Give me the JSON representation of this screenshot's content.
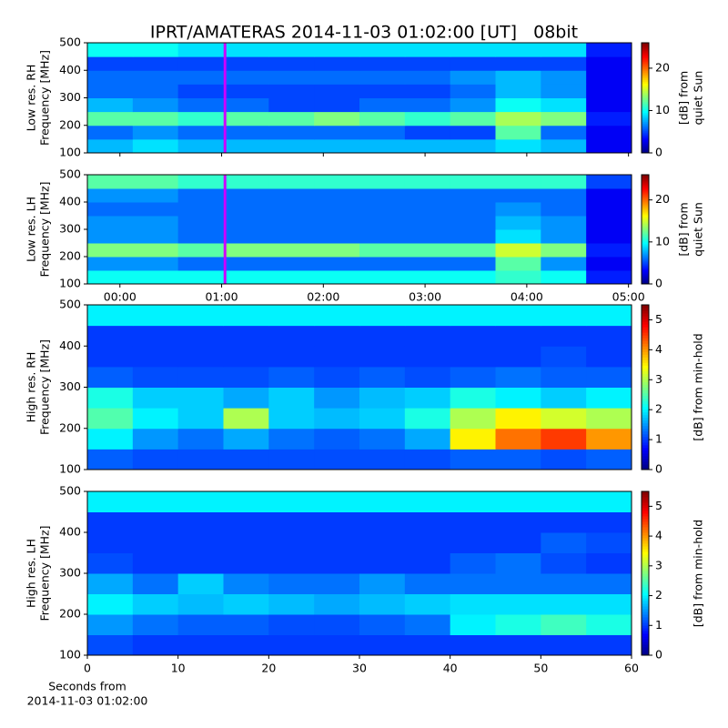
{
  "title": "IPRT/AMATERAS 2014-11-03 01:02:00 [UT]   08bit",
  "chart_data": [
    {
      "type": "heatmap",
      "ylabel": [
        "Low res. RH",
        "Frequency [MHz]"
      ],
      "xlim": [
        -0.32,
        5.03
      ],
      "ylim": [
        100,
        500
      ],
      "yticks": [
        100,
        200,
        300,
        400,
        500
      ],
      "xticks": [
        {
          "value": 0,
          "label": "00:00"
        },
        {
          "value": 1,
          "label": "01:00"
        },
        {
          "value": 2,
          "label": "02:00"
        },
        {
          "value": 3,
          "label": "03:00"
        },
        {
          "value": 4,
          "label": "04:00"
        },
        {
          "value": 5,
          "label": "05:00"
        }
      ],
      "show_xticklabels": false,
      "cursor_x": 1.033,
      "cursor_color": "#cc00ff",
      "clim": [
        0,
        26
      ],
      "cticks": [
        0,
        10,
        20
      ],
      "clabel": [
        "[dB] from",
        "quiet Sun"
      ],
      "z": [
        [
          8,
          9,
          8,
          8,
          8,
          8,
          8,
          8,
          8,
          9,
          8,
          3
        ],
        [
          6,
          7,
          6,
          6,
          6,
          6,
          6,
          5,
          5,
          12,
          6,
          3
        ],
        [
          12,
          12,
          11,
          12,
          12,
          13,
          12,
          11,
          12,
          14,
          13,
          4
        ],
        [
          8,
          7,
          6,
          6,
          5,
          5,
          6,
          6,
          7,
          10,
          9,
          3
        ],
        [
          6,
          6,
          5,
          5,
          5,
          5,
          5,
          5,
          6,
          8,
          7,
          3
        ],
        [
          6,
          6,
          6,
          6,
          6,
          6,
          6,
          6,
          7,
          8,
          7,
          3
        ],
        [
          5,
          5,
          5,
          5,
          5,
          5,
          5,
          5,
          5,
          5,
          5,
          3
        ],
        [
          10,
          10,
          9,
          9,
          9,
          9,
          9,
          9,
          9,
          9,
          9,
          4
        ]
      ]
    },
    {
      "type": "heatmap",
      "ylabel": [
        "Low res. LH",
        "Frequency [MHz]"
      ],
      "xlim": [
        -0.32,
        5.03
      ],
      "ylim": [
        100,
        500
      ],
      "yticks": [
        100,
        200,
        300,
        400,
        500
      ],
      "xticks": [
        {
          "value": 0,
          "label": "00:00"
        },
        {
          "value": 1,
          "label": "01:00"
        },
        {
          "value": 2,
          "label": "02:00"
        },
        {
          "value": 3,
          "label": "03:00"
        },
        {
          "value": 4,
          "label": "04:00"
        },
        {
          "value": 5,
          "label": "05:00"
        }
      ],
      "show_xticklabels": true,
      "cursor_x": 1.033,
      "cursor_color": "#cc00ff",
      "clim": [
        0,
        26
      ],
      "cticks": [
        0,
        10,
        20
      ],
      "clabel": [
        "[dB] from",
        "quiet Sun"
      ],
      "z": [
        [
          10,
          10,
          10,
          10,
          10,
          10,
          10,
          10,
          10,
          11,
          10,
          4
        ],
        [
          7,
          7,
          6,
          6,
          6,
          6,
          6,
          6,
          6,
          12,
          7,
          3
        ],
        [
          13,
          13,
          12,
          13,
          13,
          13,
          12,
          12,
          12,
          15,
          13,
          4
        ],
        [
          7,
          7,
          6,
          6,
          6,
          6,
          6,
          6,
          6,
          9,
          7,
          3
        ],
        [
          7,
          7,
          6,
          6,
          6,
          6,
          6,
          6,
          6,
          8,
          7,
          3
        ],
        [
          6,
          6,
          6,
          6,
          6,
          6,
          6,
          6,
          6,
          7,
          6,
          3
        ],
        [
          7,
          7,
          6,
          6,
          6,
          6,
          6,
          6,
          6,
          6,
          6,
          3
        ],
        [
          12,
          12,
          11,
          11,
          11,
          11,
          11,
          11,
          11,
          11,
          11,
          5
        ]
      ]
    },
    {
      "type": "heatmap",
      "ylabel": [
        "High res. RH",
        "Frequency [MHz]"
      ],
      "xlim": [
        0,
        60
      ],
      "ylim": [
        100,
        500
      ],
      "yticks": [
        100,
        200,
        300,
        400,
        500
      ],
      "clim": [
        0,
        5.5
      ],
      "cticks": [
        0,
        1,
        2,
        3,
        4,
        5
      ],
      "clabel": [
        "[dB] from min-hold"
      ],
      "z": [
        [
          1.2,
          1.1,
          1.1,
          1.1,
          1.1,
          1.1,
          1.1,
          1.1,
          1.2,
          1.2,
          1.1,
          1.2
        ],
        [
          2.0,
          1.5,
          1.3,
          1.6,
          1.3,
          1.2,
          1.3,
          1.6,
          3.5,
          4.2,
          4.5,
          4.0
        ],
        [
          2.5,
          2.0,
          1.8,
          3.0,
          1.8,
          1.7,
          1.8,
          2.2,
          3.0,
          3.5,
          3.2,
          3.0
        ],
        [
          2.2,
          1.8,
          1.8,
          1.6,
          1.8,
          1.5,
          1.7,
          1.8,
          2.2,
          2.0,
          1.8,
          2.0
        ],
        [
          1.2,
          1.1,
          1.1,
          1.1,
          1.2,
          1.1,
          1.2,
          1.1,
          1.2,
          1.3,
          1.2,
          1.2
        ],
        [
          1.0,
          1.0,
          1.0,
          1.0,
          1.0,
          1.0,
          1.0,
          1.0,
          1.0,
          1.0,
          1.1,
          1.0
        ],
        [
          1.0,
          1.0,
          1.0,
          1.0,
          1.0,
          1.0,
          1.0,
          1.0,
          1.0,
          1.0,
          1.0,
          1.0
        ],
        [
          2.0,
          2.0,
          2.0,
          2.0,
          2.0,
          2.0,
          2.0,
          2.0,
          2.0,
          2.0,
          2.0,
          2.0
        ]
      ]
    },
    {
      "type": "heatmap",
      "ylabel": [
        "High res. LH",
        "Frequency [MHz]"
      ],
      "xlim": [
        0,
        60
      ],
      "ylim": [
        100,
        500
      ],
      "yticks": [
        100,
        200,
        300,
        400,
        500
      ],
      "xticks": [
        0,
        10,
        20,
        30,
        40,
        50,
        60
      ],
      "show_xticklabels": true,
      "xlabel": [
        "Seconds from",
        "2014-11-03 01:02:00"
      ],
      "clim": [
        0,
        5.5
      ],
      "cticks": [
        0,
        1,
        2,
        3,
        4,
        5
      ],
      "clabel": [
        "[dB] from min-hold"
      ],
      "z": [
        [
          1.1,
          1.0,
          1.0,
          1.0,
          1.0,
          1.0,
          1.0,
          1.0,
          1.0,
          1.0,
          1.0,
          1.0
        ],
        [
          1.5,
          1.3,
          1.2,
          1.2,
          1.1,
          1.1,
          1.2,
          1.3,
          2.0,
          2.2,
          2.4,
          2.2
        ],
        [
          2.0,
          1.8,
          1.7,
          1.8,
          1.7,
          1.6,
          1.7,
          1.8,
          1.9,
          1.9,
          1.9,
          1.9
        ],
        [
          1.6,
          1.3,
          1.8,
          1.4,
          1.3,
          1.3,
          1.5,
          1.3,
          1.3,
          1.3,
          1.3,
          1.3
        ],
        [
          1.1,
          1.0,
          1.0,
          1.0,
          1.0,
          1.0,
          1.0,
          1.0,
          1.2,
          1.3,
          1.1,
          1.0
        ],
        [
          1.0,
          1.0,
          1.0,
          1.0,
          1.0,
          1.0,
          1.0,
          1.0,
          1.0,
          1.0,
          1.2,
          1.1
        ],
        [
          1.0,
          1.0,
          1.0,
          1.0,
          1.0,
          1.0,
          1.0,
          1.0,
          1.0,
          1.0,
          1.0,
          1.0
        ],
        [
          2.0,
          2.0,
          2.0,
          2.0,
          2.0,
          2.0,
          2.0,
          2.0,
          2.0,
          2.0,
          2.0,
          2.0
        ]
      ]
    }
  ]
}
